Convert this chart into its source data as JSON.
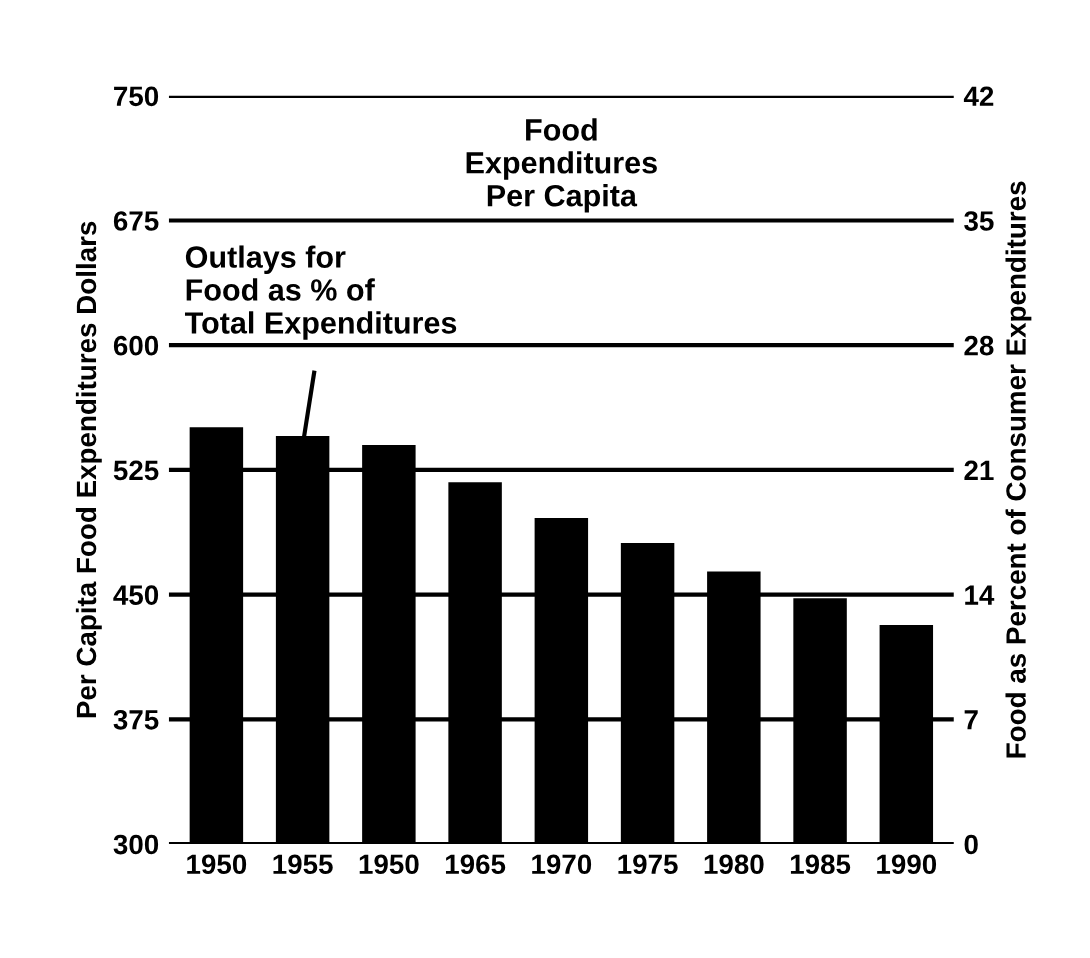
{
  "chart_data": {
    "type": "bar",
    "categories": [
      "1950",
      "1955",
      "1950",
      "1965",
      "1970",
      "1975",
      "1980",
      "1985",
      "1990"
    ],
    "series": [
      {
        "color": "#000000",
        "axis": "y2",
        "values": [
          23.4,
          22.9,
          22.4,
          20.3,
          18.3,
          16.9,
          15.3,
          13.8,
          12.3
        ]
      }
    ],
    "ylabel": "Per Capita Food Expenditures Dollars",
    "y2label": "Food as Percent of Consumer Expenditures",
    "ylim": [
      300,
      750
    ],
    "yticks": [
      300,
      375,
      450,
      525,
      600,
      675,
      750
    ],
    "y2lim": [
      0,
      42
    ],
    "y2ticks": [
      0,
      7,
      14,
      21,
      28,
      35,
      42
    ],
    "grid": "y",
    "legend": false,
    "annotations": [
      "Food\nExpenditures\nPer Capita",
      "Outlays for\nFood as % of\nTotal Expenditures"
    ]
  }
}
